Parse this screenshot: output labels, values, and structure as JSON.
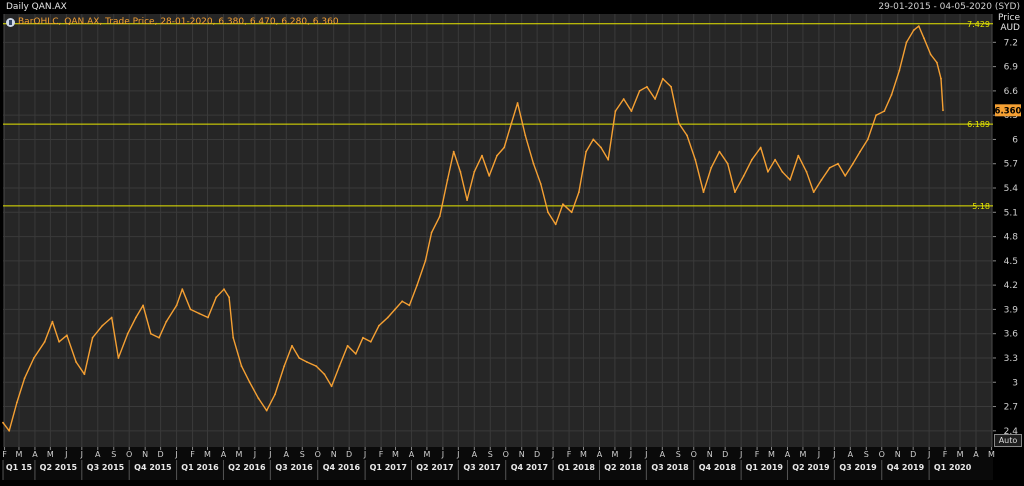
{
  "header": {
    "title": "Daily QAN.AX",
    "date_range": "29-01-2015 - 04-05-2020 (SYD)",
    "legend": "BarOHLC, QAN.AX, Trade Price, 28-01-2020, 6.380, 6.470, 6.280, 6.360",
    "price_label": "Price",
    "currency_label": "AUD",
    "auto_label": "Auto"
  },
  "colors": {
    "background": "#000000",
    "plot_background": "#262626",
    "grid": "#3a3a3a",
    "series": "#f5a033",
    "hline": "#e6e600",
    "last_price_box": "#f5a033",
    "text": "#d0d0d0"
  },
  "chart_data": {
    "type": "line",
    "ylim": [
      2.2,
      7.55
    ],
    "xlim": [
      "2015-01-29",
      "2020-05-04"
    ],
    "yticks": [
      2.4,
      2.7,
      3,
      3.3,
      3.6,
      3.9,
      4.2,
      4.5,
      4.8,
      5.1,
      5.4,
      5.7,
      6,
      6.3,
      6.6,
      6.9,
      7.2
    ],
    "ytick_labels": [
      "2.4",
      "2.7",
      "3",
      "3.3",
      "3.6",
      "3.9",
      "4.2",
      "4.5",
      "4.8",
      "5.1",
      "5.4",
      "5.7",
      "6",
      "6.3",
      "6.6",
      "6.9",
      "7.2"
    ],
    "hlines": [
      {
        "value": 7.429,
        "label": "7.429"
      },
      {
        "value": 6.189,
        "label": "6.189"
      },
      {
        "value": 5.18,
        "label": "5.18"
      }
    ],
    "last_price": {
      "value": 6.36,
      "label": "6.360"
    },
    "months": [
      {
        "date": "2015-02-01",
        "label": "F"
      },
      {
        "date": "2015-03-01",
        "label": "M"
      },
      {
        "date": "2015-04-01",
        "label": "A"
      },
      {
        "date": "2015-05-01",
        "label": "M"
      },
      {
        "date": "2015-06-01",
        "label": "J"
      },
      {
        "date": "2015-07-01",
        "label": "J"
      },
      {
        "date": "2015-08-01",
        "label": "A"
      },
      {
        "date": "2015-09-01",
        "label": "S"
      },
      {
        "date": "2015-10-01",
        "label": "O"
      },
      {
        "date": "2015-11-01",
        "label": "N"
      },
      {
        "date": "2015-12-01",
        "label": "D"
      },
      {
        "date": "2016-01-01",
        "label": "J"
      },
      {
        "date": "2016-02-01",
        "label": "F"
      },
      {
        "date": "2016-03-01",
        "label": "M"
      },
      {
        "date": "2016-04-01",
        "label": "A"
      },
      {
        "date": "2016-05-01",
        "label": "M"
      },
      {
        "date": "2016-06-01",
        "label": "J"
      },
      {
        "date": "2016-07-01",
        "label": "J"
      },
      {
        "date": "2016-08-01",
        "label": "A"
      },
      {
        "date": "2016-09-01",
        "label": "S"
      },
      {
        "date": "2016-10-01",
        "label": "O"
      },
      {
        "date": "2016-11-01",
        "label": "N"
      },
      {
        "date": "2016-12-01",
        "label": "D"
      },
      {
        "date": "2017-01-01",
        "label": "J"
      },
      {
        "date": "2017-02-01",
        "label": "F"
      },
      {
        "date": "2017-03-01",
        "label": "M"
      },
      {
        "date": "2017-04-01",
        "label": "A"
      },
      {
        "date": "2017-05-01",
        "label": "M"
      },
      {
        "date": "2017-06-01",
        "label": "J"
      },
      {
        "date": "2017-07-01",
        "label": "J"
      },
      {
        "date": "2017-08-01",
        "label": "A"
      },
      {
        "date": "2017-09-01",
        "label": "S"
      },
      {
        "date": "2017-10-01",
        "label": "O"
      },
      {
        "date": "2017-11-01",
        "label": "N"
      },
      {
        "date": "2017-12-01",
        "label": "D"
      },
      {
        "date": "2018-01-01",
        "label": "J"
      },
      {
        "date": "2018-02-01",
        "label": "F"
      },
      {
        "date": "2018-03-01",
        "label": "M"
      },
      {
        "date": "2018-04-01",
        "label": "A"
      },
      {
        "date": "2018-05-01",
        "label": "M"
      },
      {
        "date": "2018-06-01",
        "label": "J"
      },
      {
        "date": "2018-07-01",
        "label": "J"
      },
      {
        "date": "2018-08-01",
        "label": "A"
      },
      {
        "date": "2018-09-01",
        "label": "S"
      },
      {
        "date": "2018-10-01",
        "label": "O"
      },
      {
        "date": "2018-11-01",
        "label": "N"
      },
      {
        "date": "2018-12-01",
        "label": "D"
      },
      {
        "date": "2019-01-01",
        "label": "J"
      },
      {
        "date": "2019-02-01",
        "label": "F"
      },
      {
        "date": "2019-03-01",
        "label": "M"
      },
      {
        "date": "2019-04-01",
        "label": "A"
      },
      {
        "date": "2019-05-01",
        "label": "M"
      },
      {
        "date": "2019-06-01",
        "label": "J"
      },
      {
        "date": "2019-07-01",
        "label": "J"
      },
      {
        "date": "2019-08-01",
        "label": "A"
      },
      {
        "date": "2019-09-01",
        "label": "S"
      },
      {
        "date": "2019-10-01",
        "label": "O"
      },
      {
        "date": "2019-11-01",
        "label": "N"
      },
      {
        "date": "2019-12-01",
        "label": "D"
      },
      {
        "date": "2020-01-01",
        "label": "J"
      },
      {
        "date": "2020-02-01",
        "label": "F"
      },
      {
        "date": "2020-03-01",
        "label": "M"
      },
      {
        "date": "2020-04-01",
        "label": "A"
      },
      {
        "date": "2020-05-01",
        "label": "M"
      }
    ],
    "quarters": [
      {
        "start": "2015-01-01",
        "end": "2015-04-01",
        "label": "Q1 15"
      },
      {
        "start": "2015-04-01",
        "end": "2015-07-01",
        "label": "Q2 2015"
      },
      {
        "start": "2015-07-01",
        "end": "2015-10-01",
        "label": "Q3 2015"
      },
      {
        "start": "2015-10-01",
        "end": "2016-01-01",
        "label": "Q4 2015"
      },
      {
        "start": "2016-01-01",
        "end": "2016-04-01",
        "label": "Q1 2016"
      },
      {
        "start": "2016-04-01",
        "end": "2016-07-01",
        "label": "Q2 2016"
      },
      {
        "start": "2016-07-01",
        "end": "2016-10-01",
        "label": "Q3 2016"
      },
      {
        "start": "2016-10-01",
        "end": "2017-01-01",
        "label": "Q4 2016"
      },
      {
        "start": "2017-01-01",
        "end": "2017-04-01",
        "label": "Q1 2017"
      },
      {
        "start": "2017-04-01",
        "end": "2017-07-01",
        "label": "Q2 2017"
      },
      {
        "start": "2017-07-01",
        "end": "2017-10-01",
        "label": "Q3 2017"
      },
      {
        "start": "2017-10-01",
        "end": "2018-01-01",
        "label": "Q4 2017"
      },
      {
        "start": "2018-01-01",
        "end": "2018-04-01",
        "label": "Q1 2018"
      },
      {
        "start": "2018-04-01",
        "end": "2018-07-01",
        "label": "Q2 2018"
      },
      {
        "start": "2018-07-01",
        "end": "2018-10-01",
        "label": "Q3 2018"
      },
      {
        "start": "2018-10-01",
        "end": "2019-01-01",
        "label": "Q4 2018"
      },
      {
        "start": "2019-01-01",
        "end": "2019-04-01",
        "label": "Q1 2019"
      },
      {
        "start": "2019-04-01",
        "end": "2019-07-01",
        "label": "Q2 2019"
      },
      {
        "start": "2019-07-01",
        "end": "2019-10-01",
        "label": "Q3 2019"
      },
      {
        "start": "2019-10-01",
        "end": "2020-01-01",
        "label": "Q4 2019"
      },
      {
        "start": "2020-01-01",
        "end": "2020-04-01",
        "label": "Q1 2020"
      }
    ],
    "series": [
      {
        "values": [
          [
            "2015-01-29",
            2.5
          ],
          [
            "2015-02-10",
            2.4
          ],
          [
            "2015-02-25",
            2.75
          ],
          [
            "2015-03-12",
            3.05
          ],
          [
            "2015-03-30",
            3.3
          ],
          [
            "2015-04-20",
            3.5
          ],
          [
            "2015-05-05",
            3.75
          ],
          [
            "2015-05-18",
            3.5
          ],
          [
            "2015-06-02",
            3.58
          ],
          [
            "2015-06-20",
            3.25
          ],
          [
            "2015-07-06",
            3.1
          ],
          [
            "2015-07-22",
            3.55
          ],
          [
            "2015-08-10",
            3.7
          ],
          [
            "2015-08-28",
            3.8
          ],
          [
            "2015-09-10",
            3.3
          ],
          [
            "2015-09-28",
            3.6
          ],
          [
            "2015-10-14",
            3.8
          ],
          [
            "2015-10-28",
            3.95
          ],
          [
            "2015-11-12",
            3.6
          ],
          [
            "2015-11-28",
            3.55
          ],
          [
            "2015-12-12",
            3.75
          ],
          [
            "2016-01-01",
            3.95
          ],
          [
            "2016-01-12",
            4.15
          ],
          [
            "2016-01-28",
            3.9
          ],
          [
            "2016-02-14",
            3.85
          ],
          [
            "2016-03-02",
            3.8
          ],
          [
            "2016-03-18",
            4.05
          ],
          [
            "2016-04-02",
            4.15
          ],
          [
            "2016-04-12",
            4.05
          ],
          [
            "2016-04-20",
            3.55
          ],
          [
            "2016-05-06",
            3.2
          ],
          [
            "2016-05-22",
            3.0
          ],
          [
            "2016-06-08",
            2.8
          ],
          [
            "2016-06-24",
            2.65
          ],
          [
            "2016-07-10",
            2.85
          ],
          [
            "2016-07-28",
            3.2
          ],
          [
            "2016-08-12",
            3.45
          ],
          [
            "2016-08-26",
            3.3
          ],
          [
            "2016-09-10",
            3.25
          ],
          [
            "2016-09-28",
            3.2
          ],
          [
            "2016-10-14",
            3.1
          ],
          [
            "2016-10-28",
            2.95
          ],
          [
            "2016-11-12",
            3.2
          ],
          [
            "2016-11-28",
            3.45
          ],
          [
            "2016-12-14",
            3.35
          ],
          [
            "2016-12-28",
            3.55
          ],
          [
            "2017-01-12",
            3.5
          ],
          [
            "2017-01-28",
            3.7
          ],
          [
            "2017-02-14",
            3.8
          ],
          [
            "2017-02-28",
            3.9
          ],
          [
            "2017-03-14",
            4.0
          ],
          [
            "2017-03-28",
            3.95
          ],
          [
            "2017-04-12",
            4.2
          ],
          [
            "2017-04-28",
            4.5
          ],
          [
            "2017-05-10",
            4.85
          ],
          [
            "2017-05-26",
            5.05
          ],
          [
            "2017-06-10",
            5.5
          ],
          [
            "2017-06-22",
            5.85
          ],
          [
            "2017-07-05",
            5.6
          ],
          [
            "2017-07-18",
            5.25
          ],
          [
            "2017-08-01",
            5.6
          ],
          [
            "2017-08-16",
            5.8
          ],
          [
            "2017-08-30",
            5.55
          ],
          [
            "2017-09-14",
            5.8
          ],
          [
            "2017-09-28",
            5.9
          ],
          [
            "2017-10-12",
            6.2
          ],
          [
            "2017-10-24",
            6.45
          ],
          [
            "2017-11-08",
            6.05
          ],
          [
            "2017-11-24",
            5.7
          ],
          [
            "2017-12-08",
            5.45
          ],
          [
            "2017-12-22",
            5.1
          ],
          [
            "2018-01-06",
            4.95
          ],
          [
            "2018-01-20",
            5.2
          ],
          [
            "2018-02-06",
            5.1
          ],
          [
            "2018-02-20",
            5.35
          ],
          [
            "2018-03-06",
            5.85
          ],
          [
            "2018-03-20",
            6.0
          ],
          [
            "2018-04-04",
            5.9
          ],
          [
            "2018-04-18",
            5.75
          ],
          [
            "2018-05-02",
            6.35
          ],
          [
            "2018-05-18",
            6.5
          ],
          [
            "2018-06-02",
            6.35
          ],
          [
            "2018-06-18",
            6.6
          ],
          [
            "2018-07-02",
            6.65
          ],
          [
            "2018-07-18",
            6.5
          ],
          [
            "2018-08-02",
            6.75
          ],
          [
            "2018-08-18",
            6.65
          ],
          [
            "2018-09-02",
            6.2
          ],
          [
            "2018-09-18",
            6.05
          ],
          [
            "2018-10-04",
            5.75
          ],
          [
            "2018-10-20",
            5.35
          ],
          [
            "2018-11-04",
            5.65
          ],
          [
            "2018-11-20",
            5.85
          ],
          [
            "2018-12-06",
            5.7
          ],
          [
            "2018-12-20",
            5.35
          ],
          [
            "2019-01-06",
            5.55
          ],
          [
            "2019-01-22",
            5.75
          ],
          [
            "2019-02-08",
            5.9
          ],
          [
            "2019-02-22",
            5.6
          ],
          [
            "2019-03-08",
            5.75
          ],
          [
            "2019-03-22",
            5.6
          ],
          [
            "2019-04-06",
            5.5
          ],
          [
            "2019-04-22",
            5.8
          ],
          [
            "2019-05-08",
            5.6
          ],
          [
            "2019-05-22",
            5.35
          ],
          [
            "2019-06-06",
            5.5
          ],
          [
            "2019-06-22",
            5.65
          ],
          [
            "2019-07-08",
            5.7
          ],
          [
            "2019-07-22",
            5.55
          ],
          [
            "2019-08-06",
            5.7
          ],
          [
            "2019-08-20",
            5.85
          ],
          [
            "2019-09-04",
            6.0
          ],
          [
            "2019-09-20",
            6.3
          ],
          [
            "2019-10-06",
            6.35
          ],
          [
            "2019-10-20",
            6.55
          ],
          [
            "2019-11-04",
            6.85
          ],
          [
            "2019-11-18",
            7.2
          ],
          [
            "2019-12-02",
            7.35
          ],
          [
            "2019-12-12",
            7.4
          ],
          [
            "2019-12-22",
            7.25
          ],
          [
            "2020-01-04",
            7.05
          ],
          [
            "2020-01-16",
            6.95
          ],
          [
            "2020-01-24",
            6.75
          ],
          [
            "2020-01-28",
            6.36
          ]
        ]
      }
    ]
  }
}
